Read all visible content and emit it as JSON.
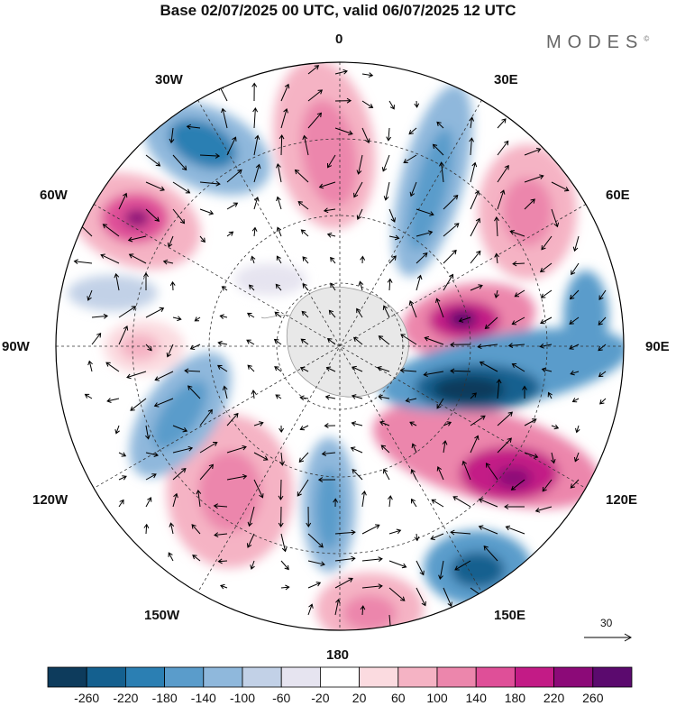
{
  "title": "Base 02/07/2025 00 UTC, valid 06/07/2025 12 UTC",
  "brand": {
    "name": "MODES",
    "mark": "©"
  },
  "map": {
    "projection": "south polar stereographic",
    "longitude_labels": [
      "0",
      "30E",
      "60E",
      "90E",
      "120E",
      "150E",
      "180",
      "150W",
      "120W",
      "90W",
      "60W",
      "30W"
    ],
    "ocean_color": "#ffffff",
    "land_color": "#e8e8e8",
    "grid": true
  },
  "colorbar": {
    "labels": [
      "-260",
      "-220",
      "-180",
      "-140",
      "-100",
      "-60",
      "-20",
      "20",
      "60",
      "100",
      "140",
      "180",
      "220",
      "260"
    ],
    "colors": [
      "#0d3b5c",
      "#14608f",
      "#2b7fb3",
      "#5a9ccb",
      "#8fb8dc",
      "#c2d1e7",
      "#e6e4f0",
      "#ffffff",
      "#fbdbe0",
      "#f5b3c4",
      "#ec86ac",
      "#df4f98",
      "#c31b86",
      "#8c0a78",
      "#5b0a6e"
    ]
  },
  "vector_reference": {
    "value": "30"
  }
}
